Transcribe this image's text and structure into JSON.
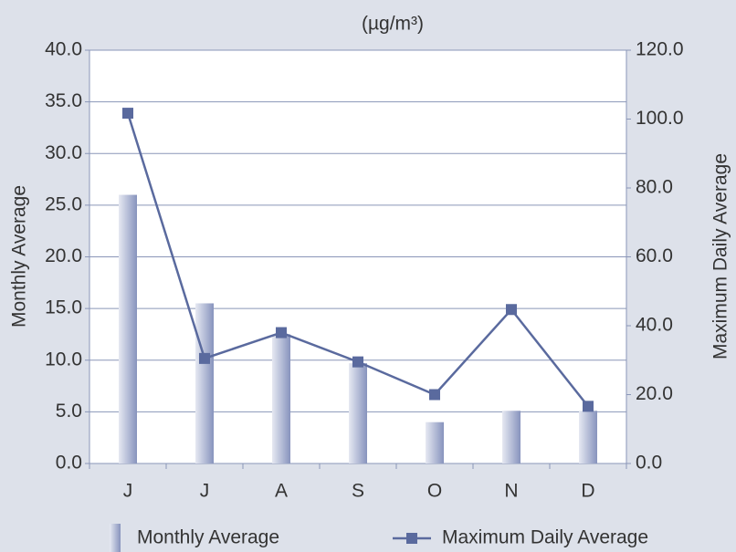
{
  "chart_data": {
    "type": "bar_line",
    "unit_label": "(µg/m³)",
    "y_label": "Monthly Average",
    "y2_label": "Maximum Daily Average",
    "categories": [
      "J",
      "J",
      "A",
      "S",
      "O",
      "N",
      "D"
    ],
    "series": [
      {
        "name": "Monthly Average",
        "type": "bar",
        "color": "#8e9cc4",
        "values": [
          26.0,
          15.5,
          12.5,
          9.7,
          4.0,
          5.1,
          5.1
        ]
      },
      {
        "name": "Maximum Daily Average",
        "type": "line",
        "axis": "y2",
        "color": "#5a6a9e",
        "values": [
          101.7,
          30.5,
          38.0,
          29.5,
          20.0,
          44.7,
          16.6
        ]
      }
    ],
    "ylim": [
      0,
      40
    ],
    "yticks": [
      {
        "value": 0,
        "label": "0.0"
      },
      {
        "value": 5,
        "label": "5.0"
      },
      {
        "value": 10,
        "label": "10.0"
      },
      {
        "value": 15,
        "label": "15.0"
      },
      {
        "value": 20,
        "label": "20.0"
      },
      {
        "value": 25,
        "label": "25.0"
      },
      {
        "value": 30,
        "label": "30.0"
      },
      {
        "value": 35,
        "label": "35.0"
      },
      {
        "value": 40,
        "label": "40.0"
      }
    ],
    "y2lim": [
      0,
      120
    ],
    "y2ticks": [
      {
        "value": 0,
        "label": "0.0"
      },
      {
        "value": 20,
        "label": "20.0"
      },
      {
        "value": 40,
        "label": "40.0"
      },
      {
        "value": 60,
        "label": "60.0"
      },
      {
        "value": 80,
        "label": "80.0"
      },
      {
        "value": 100,
        "label": "100.0"
      },
      {
        "value": 120,
        "label": "120.0"
      }
    ],
    "grid": true
  }
}
